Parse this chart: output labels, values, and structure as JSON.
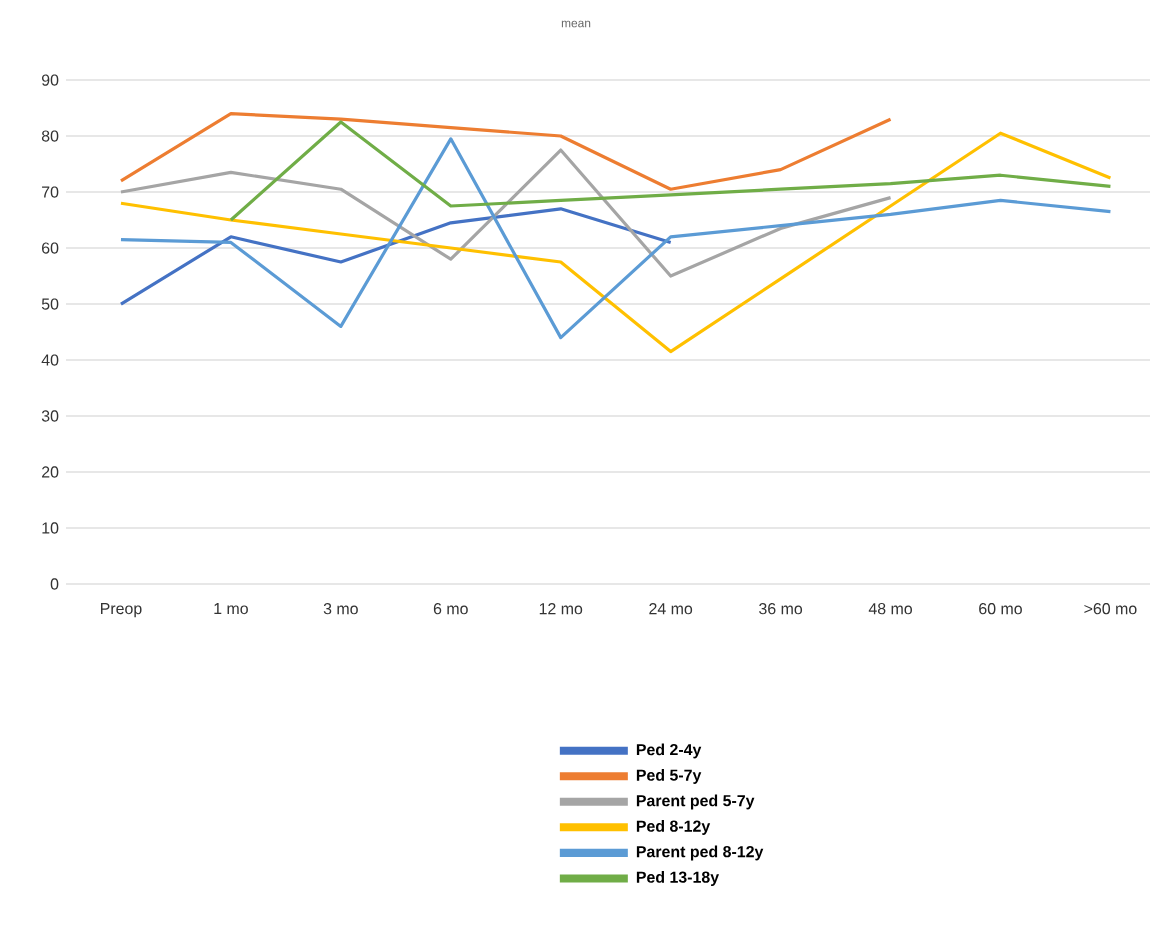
{
  "chart_data": {
    "type": "line",
    "title": "mean",
    "categories": [
      "Preop",
      "1 mo",
      "3 mo",
      "6 mo",
      "12 mo",
      "24 mo",
      "36 mo",
      "48 mo",
      "60 mo",
      ">60 mo"
    ],
    "series": [
      {
        "name": "Ped 2-4y",
        "color": "#4472c4",
        "values": [
          50,
          62,
          57.5,
          64.5,
          67,
          61,
          null,
          null,
          null,
          null
        ]
      },
      {
        "name": "Ped 5-7y",
        "color": "#ed7d31",
        "values": [
          72,
          84,
          83,
          81.5,
          80,
          70.5,
          74,
          83,
          null,
          null
        ]
      },
      {
        "name": "Parent ped 5-7y",
        "color": "#a5a5a5",
        "values": [
          70,
          73.5,
          70.5,
          58,
          77.5,
          55,
          63.5,
          69,
          null,
          null
        ]
      },
      {
        "name": "Ped 8-12y",
        "color": "#ffc000",
        "values": [
          68,
          65,
          62.5,
          60,
          57.5,
          41.5,
          54.5,
          67.5,
          80.5,
          72.5
        ]
      },
      {
        "name": "Parent ped 8-12y",
        "color": "#5b9bd5",
        "values": [
          61.5,
          61,
          46,
          79.5,
          44,
          62,
          64,
          66,
          68.5,
          66.5
        ]
      },
      {
        "name": "Ped 13-18y",
        "color": "#70ad47",
        "values": [
          null,
          65,
          82.5,
          67.5,
          68.5,
          69.5,
          70.5,
          71.5,
          73,
          71
        ]
      }
    ],
    "ylim": [
      0,
      90
    ],
    "yticks": [
      0,
      10,
      20,
      30,
      40,
      50,
      60,
      70,
      80,
      90
    ],
    "grid": "y",
    "legend": "bottom",
    "marker": "none",
    "line_style": "solid"
  }
}
